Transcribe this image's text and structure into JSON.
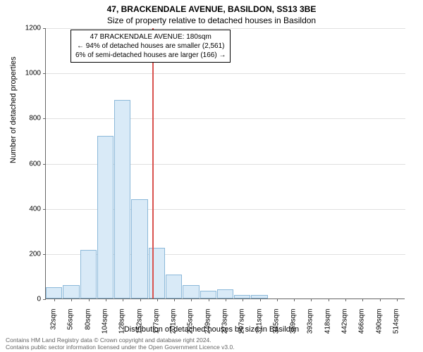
{
  "title_main": "47, BRACKENDALE AVENUE, BASILDON, SS13 3BE",
  "title_sub": "Size of property relative to detached houses in Basildon",
  "chart": {
    "type": "histogram",
    "ylim": [
      0,
      1200
    ],
    "ytick_step": 200,
    "xtick_labels": [
      "32sqm",
      "56sqm",
      "80sqm",
      "104sqm",
      "128sqm",
      "152sqm",
      "177sqm",
      "201sqm",
      "225sqm",
      "249sqm",
      "273sqm",
      "297sqm",
      "321sqm",
      "345sqm",
      "369sqm",
      "393sqm",
      "418sqm",
      "442sqm",
      "466sqm",
      "490sqm",
      "514sqm"
    ],
    "bars": [
      50,
      60,
      215,
      720,
      880,
      440,
      225,
      105,
      60,
      35,
      40,
      15,
      15,
      0,
      0,
      0,
      0,
      0,
      0,
      0,
      0
    ],
    "bar_color": "#d9eaf7",
    "bar_border_color": "#8bb8d9",
    "refline_index": 6,
    "refline_color": "#d9534f",
    "background_color": "#ffffff",
    "grid_color": "#e0e0e0",
    "axis_color": "#666666"
  },
  "annotation": {
    "line1": "47 BRACKENDALE AVENUE: 180sqm",
    "line2": "← 94% of detached houses are smaller (2,561)",
    "line3": "6% of semi-detached houses are larger (166) →"
  },
  "ylabel": "Number of detached properties",
  "xlabel": "Distribution of detached houses by size in Basildon",
  "footer": {
    "line1": "Contains HM Land Registry data © Crown copyright and database right 2024.",
    "line2": "Contains public sector information licensed under the Open Government Licence v3.0."
  }
}
